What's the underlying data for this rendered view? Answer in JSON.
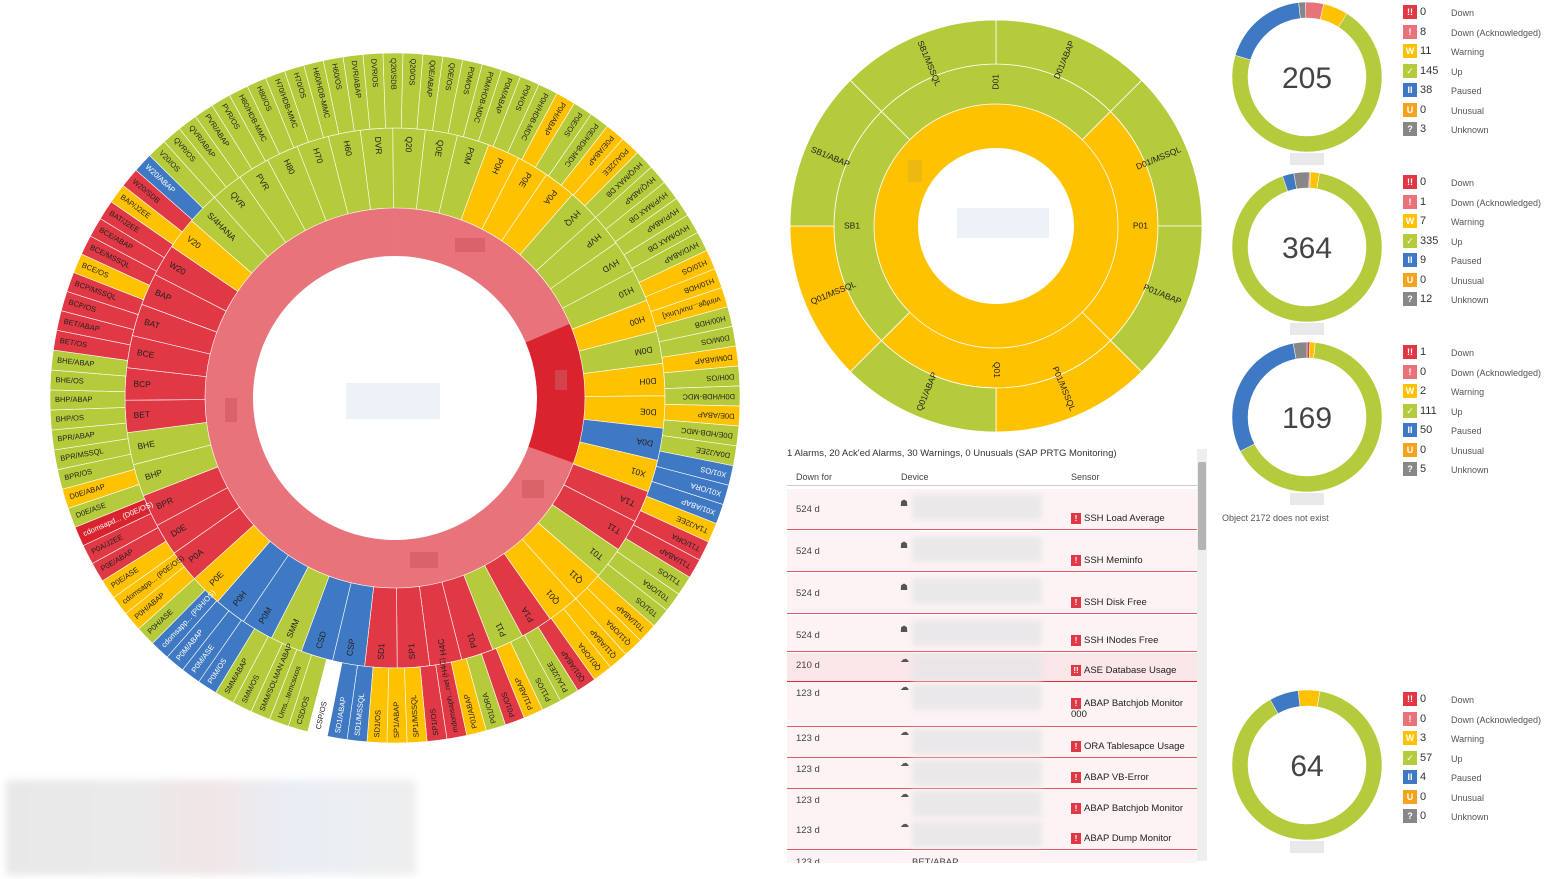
{
  "colors": {
    "down": "#e03845",
    "down_ack": "#e9737b",
    "warning": "#ffc200",
    "up": "#b5cb3b",
    "paused": "#3f79c3",
    "unusual": "#f3a31c",
    "unknown": "#878787",
    "down_red": "#d9242f"
  },
  "sunburst_left": {
    "outer_labels": [
      "QVR/OS",
      "QVR/ABAP",
      "PVR/ABAP",
      "PVR/OS",
      "H80/HDB-MMC",
      "H80/OS",
      "H70/HDB-MMC",
      "H70/OS",
      "H60/HDB-MMC",
      "H60/OS",
      "DVR/ABAP",
      "DVR/OS",
      "Q20/SDB",
      "Q20/OS",
      "Q0E/ABAP",
      "Q0E/OS",
      "P0M/OS",
      "P0M/HDB-MDC",
      "P0M/ABAP",
      "P0H/OS",
      "P0H/HDB-MDC",
      "P0H/ABAP",
      "P0E/OS",
      "P0E/HDB-MDC",
      "P0E/ABAP",
      "P0A/J2EE",
      "HVQ/MAX DB",
      "HVQ/ABAP",
      "HVP/MAX DB",
      "HVP/ABAP",
      "HVD/MAX DB",
      "HVD/ABAP",
      "H10/OS",
      "H10/HDB",
      "vrinfge...nux/Unix]",
      "H00/HDB",
      "D0M/OS",
      "D0M/ABAP",
      "D0H/OS",
      "D0H/HDB-MDC",
      "D0E/ABAP",
      "D0E/HDB-MDC",
      "D0A/J2EE",
      "X01/OS",
      "X01/ORA",
      "X01/ABAP",
      "T1A/J2EE",
      "T11/ORA",
      "T11/ABAP",
      "T11/OS",
      "T01/ORA",
      "T01/OS",
      "T01/ABAP",
      "Q11/ORA",
      "Q11/ABAP",
      "Q01/ORA",
      "Q01/ABAP",
      "P1A/J2EE",
      "P11/OS",
      "P11/ABAP",
      "P01/OS",
      "P01/ORA",
      "P01/ABAP",
      "mdomsaph...net (H4C)",
      "SP1/OS",
      "SP1/MSSQL",
      "SP1/ABAP",
      "SD1/OS",
      "SD1/MSSQL",
      "SD1/ABAP",
      "CSP/OS",
      "CSD/OS",
      "Ums...temcsixos",
      "SMM/SOLMAN ABAP",
      "SMM/OS",
      "SMM/ABAP",
      "P0M/OS",
      "P0M/ASE",
      "P0M/ABAP",
      "cdomsapp... (P0H/OS)",
      "P0H/ASE",
      "P0H/ABAP",
      "cdomsapp... (P0E/OS)",
      "P0E/ASE",
      "P0E/ABAP",
      "P0A/J2EE",
      "cdomsapd... (D0E/OS)",
      "D0E/ASE",
      "D0E/ABAP",
      "BPR/OS",
      "BPR/MSSQL",
      "BPR/ABAP",
      "BHP/OS",
      "BHP/ABAP",
      "BHE/OS",
      "BHE/ABAP",
      "BET/OS",
      "BET/ABAP",
      "BCP/OS",
      "BCP/MSSQL",
      "BCE/OS",
      "BCE/MSSQL",
      "BCE/ABAP",
      "BAT/J2EE",
      "BAP/J2EE",
      "W20/SDB",
      "W20/ABAP",
      "V20/OS",
      "V20/ABAP",
      "CSP/ ComServer_ims...leme"
    ],
    "mid_labels": [
      "QVR",
      "PVR",
      "H80",
      "H70",
      "H60",
      "DVR",
      "Q20",
      "Q0E",
      "P0M",
      "P0H",
      "P0E",
      "P0A",
      "HVQ",
      "HVP",
      "HVD",
      "H10",
      "H00",
      "D0M",
      "D0H",
      "D0E",
      "D0A",
      "X01",
      "T1A",
      "T11",
      "T01",
      "Q11",
      "Q01",
      "P1A",
      "P11",
      "P01",
      "H4C",
      "SP1",
      "SD1",
      "CSP",
      "CSD",
      "SMM",
      "P0M",
      "P0H",
      "P0E",
      "P0A",
      "D0E",
      "BPR",
      "BHP",
      "BHE",
      "BET",
      "BCP",
      "BCE",
      "BAT",
      "BAP",
      "W20",
      "V20",
      "S/4HANA"
    ]
  },
  "sunburst_right": {
    "outer_labels": [
      "D01/ABAP",
      "D01/MSSQL",
      "P01/ABAP",
      "P01/MSSQL",
      "Q01/ABAP",
      "Q01/MSSQL",
      "SB1/ABAP",
      "SB1/MSSQL"
    ],
    "mid_labels": [
      "D01",
      "P01",
      "Q01",
      "SB1"
    ]
  },
  "alarm_table": {
    "title": "1 Alarms, 20 Ack'ed Alarms, 30 Warnings, 0 Unusuals (SAP PRTG Monitoring)",
    "headers": {
      "down_for": "Down for",
      "device": "Device",
      "sensor": "Sensor"
    },
    "rows": [
      {
        "down_for": "524 d",
        "sensor": "SSH Load Average",
        "badge": "!"
      },
      {
        "down_for": "524 d",
        "sensor": "SSH Meminfo",
        "badge": "!"
      },
      {
        "down_for": "524 d",
        "sensor": "SSH Disk Free",
        "badge": "!"
      },
      {
        "down_for": "524 d",
        "sensor": "SSH INodes Free",
        "badge": "!"
      },
      {
        "down_for": "210 d",
        "sensor": "ASE Database Usage",
        "badge": "!!"
      },
      {
        "down_for": "123 d",
        "sensor": "ABAP Batchjob Monitor 000",
        "badge": "!"
      },
      {
        "down_for": "123 d",
        "sensor": "ORA Tablesapce Usage",
        "badge": "!"
      },
      {
        "down_for": "123 d",
        "sensor": "ABAP VB-Error",
        "badge": "!"
      },
      {
        "down_for": "123 d",
        "sensor": "ABAP Batchjob Monitor",
        "badge": "!"
      },
      {
        "down_for": "123 d",
        "sensor": "ABAP Dump Monitor",
        "badge": "!"
      }
    ],
    "partial_row": {
      "down_for": "123 d",
      "device": "BET/ABAP"
    }
  },
  "status_labels": [
    {
      "badge": "!!",
      "label": "Down",
      "color": "#e03845"
    },
    {
      "badge": "!",
      "label": "Down (Acknowledged)",
      "color": "#e9737b"
    },
    {
      "badge": "W",
      "label": "Warning",
      "color": "#ffc200"
    },
    {
      "badge": "✓",
      "label": "Up",
      "color": "#b5cb3b"
    },
    {
      "badge": "II",
      "label": "Paused",
      "color": "#3f79c3"
    },
    {
      "badge": "U",
      "label": "Unusual",
      "color": "#f3a31c"
    },
    {
      "badge": "?",
      "label": "Unknown",
      "color": "#878787"
    }
  ],
  "donuts": [
    {
      "total": "205",
      "counts": [
        "0",
        "8",
        "11",
        "145",
        "38",
        "0",
        "3"
      ]
    },
    {
      "total": "364",
      "counts": [
        "0",
        "1",
        "7",
        "335",
        "9",
        "0",
        "12"
      ]
    },
    {
      "total": "169",
      "counts": [
        "1",
        "0",
        "2",
        "111",
        "50",
        "0",
        "5"
      ]
    },
    {
      "total": "64",
      "counts": [
        "0",
        "0",
        "3",
        "57",
        "4",
        "0",
        "0"
      ]
    }
  ],
  "error_text": "Object 2172 does not exist"
}
